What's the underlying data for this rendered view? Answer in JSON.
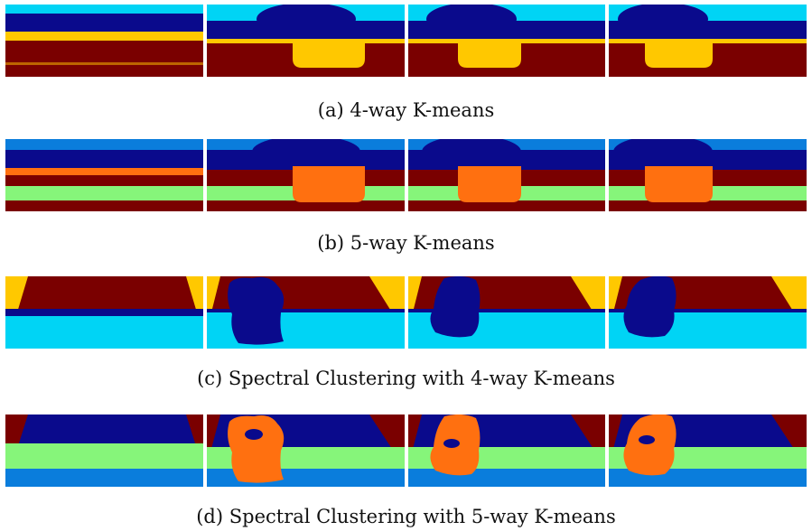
{
  "palette": {
    "cyan": "#00d4f5",
    "navy": "#0a0a8c",
    "maroon": "#7a0000",
    "yellow": "#ffc800",
    "blue": "#0a7ddc",
    "orange": "#ff7010",
    "green": "#86f57a"
  },
  "figures": [
    {
      "caption": "(a) 4-way K-means",
      "panels": [
        {
          "variant": "flat"
        },
        {
          "variant": "blob-low"
        },
        {
          "variant": "blob-low"
        },
        {
          "variant": "blob-low"
        }
      ]
    },
    {
      "caption": "(b) 5-way K-means",
      "panels": [
        {
          "variant": "flat"
        },
        {
          "variant": "blob-low"
        },
        {
          "variant": "blob-low"
        },
        {
          "variant": "blob-low"
        }
      ]
    },
    {
      "caption": "(c) Spectral Clustering with 4-way K-means",
      "panels": [
        {
          "variant": "flat"
        },
        {
          "variant": "blob-high"
        },
        {
          "variant": "blob-high"
        },
        {
          "variant": "blob-high"
        }
      ]
    },
    {
      "caption": "(d) Spectral Clustering with 5-way K-means",
      "panels": [
        {
          "variant": "flat"
        },
        {
          "variant": "blob-high"
        },
        {
          "variant": "blob-high"
        },
        {
          "variant": "blob-high"
        }
      ]
    }
  ]
}
